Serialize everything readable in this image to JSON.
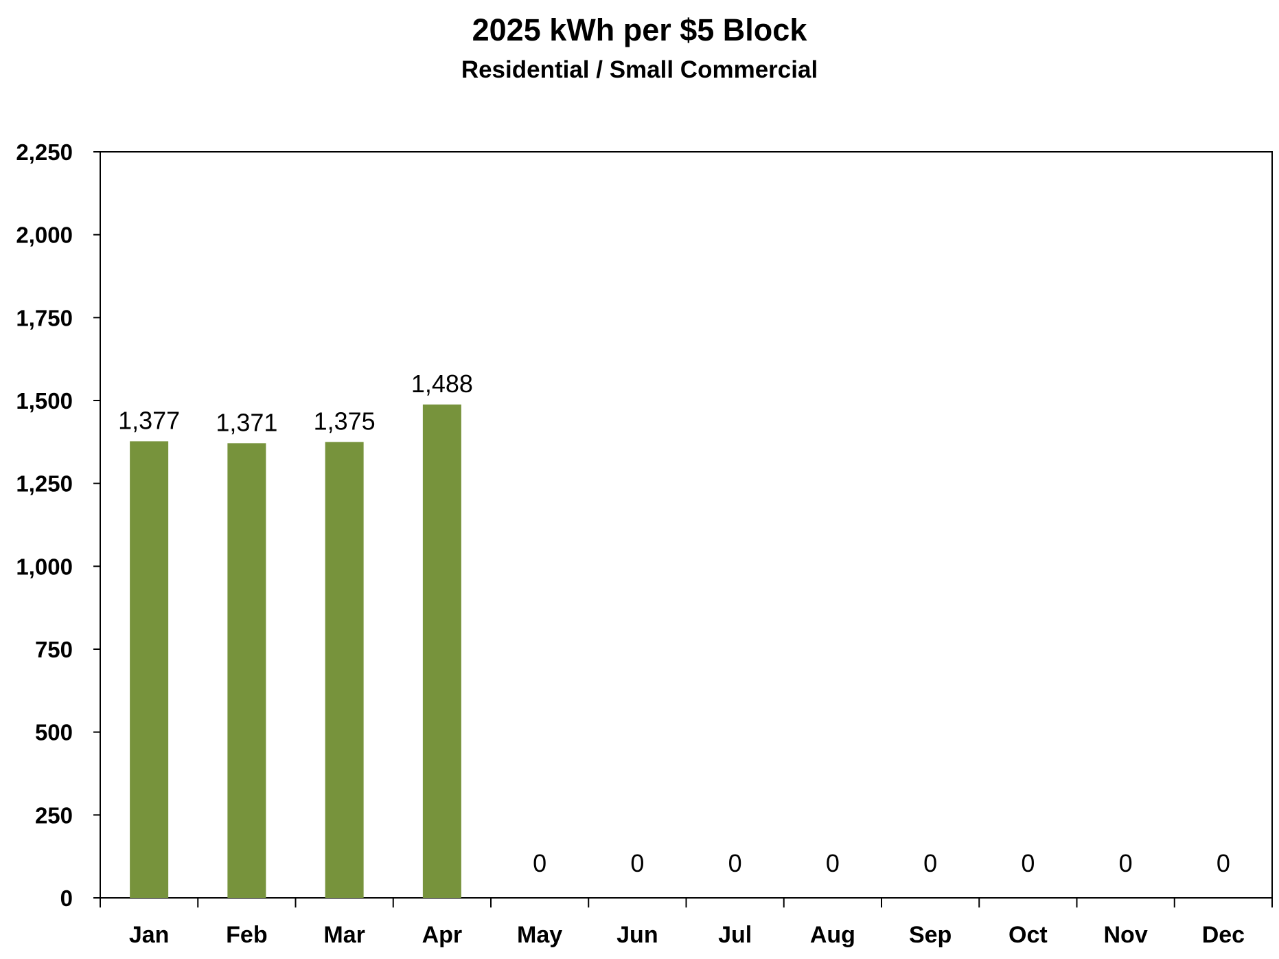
{
  "chart_data": {
    "type": "bar",
    "title": "2025 kWh per $5 Block",
    "subtitle": "Residential / Small Commercial",
    "xlabel": "",
    "ylabel": "",
    "categories": [
      "Jan",
      "Feb",
      "Mar",
      "Apr",
      "May",
      "Jun",
      "Jul",
      "Aug",
      "Sep",
      "Oct",
      "Nov",
      "Dec"
    ],
    "values": [
      1377,
      1371,
      1375,
      1488,
      0,
      0,
      0,
      0,
      0,
      0,
      0,
      0
    ],
    "data_labels": [
      "1,377",
      "1,371",
      "1,375",
      "1,488",
      "0",
      "0",
      "0",
      "0",
      "0",
      "0",
      "0",
      "0"
    ],
    "ylim": [
      0,
      2250
    ],
    "yticks": [
      0,
      250,
      500,
      750,
      1000,
      1250,
      1500,
      1750,
      2000,
      2250
    ],
    "ytick_labels": [
      "0",
      "250",
      "500",
      "750",
      "1,000",
      "1,250",
      "1,500",
      "1,750",
      "2,000",
      "2,250"
    ],
    "grid": false,
    "legend": "none",
    "bar_color": "#77933c"
  }
}
